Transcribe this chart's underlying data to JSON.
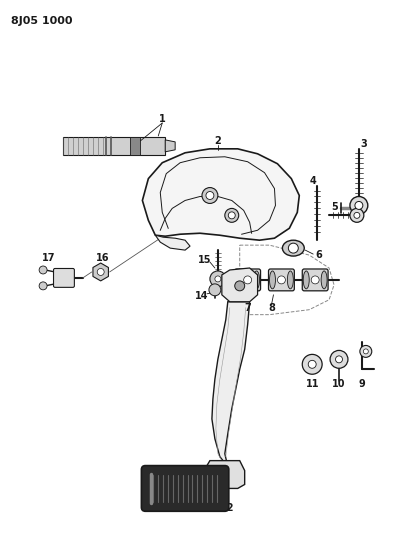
{
  "title": "8J05 1000",
  "bg": "#ffffff",
  "lc": "#1a1a1a",
  "fig_w": 3.97,
  "fig_h": 5.33,
  "dpi": 100
}
